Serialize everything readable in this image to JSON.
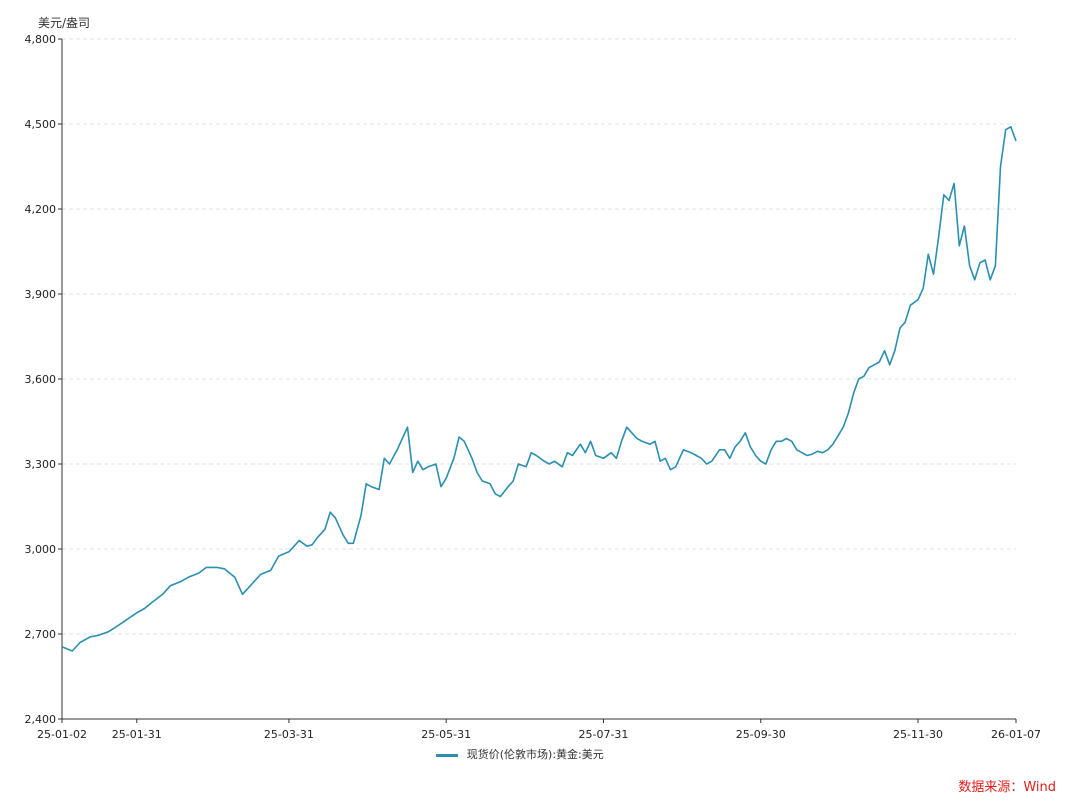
{
  "chart_data": {
    "type": "line",
    "ylabel": "美元/盎司",
    "ylim": [
      2400,
      4800
    ],
    "yticks": [
      "2,400",
      "2,700",
      "3,000",
      "3,300",
      "3,600",
      "3,900",
      "4,200",
      "4,500",
      "4,800"
    ],
    "ytick_values": [
      2400,
      2700,
      3000,
      3300,
      3600,
      3900,
      4200,
      4500,
      4800
    ],
    "xlim": [
      "2025-01-02",
      "2026-01-07"
    ],
    "xticks": [
      {
        "label": "25-01-02",
        "date": "2025-01-02"
      },
      {
        "label": "25-01-31",
        "date": "2025-01-31"
      },
      {
        "label": "25-03-31",
        "date": "2025-03-31"
      },
      {
        "label": "25-05-31",
        "date": "2025-05-31"
      },
      {
        "label": "25-07-31",
        "date": "2025-07-31"
      },
      {
        "label": "25-09-30",
        "date": "2025-09-30"
      },
      {
        "label": "25-11-30",
        "date": "2025-11-30"
      },
      {
        "label": "26-01-07",
        "date": "2026-01-07"
      }
    ],
    "grid": true,
    "legend_position": "bottom-center",
    "source_note": "数据来源：Wind",
    "series": [
      {
        "name": "现货价(伦敦市场):黄金:美元",
        "color": "#2a8fb0",
        "points": [
          [
            "2025-01-02",
            2655
          ],
          [
            "2025-01-06",
            2640
          ],
          [
            "2025-01-09",
            2670
          ],
          [
            "2025-01-13",
            2690
          ],
          [
            "2025-01-16",
            2695
          ],
          [
            "2025-01-20",
            2708
          ],
          [
            "2025-01-23",
            2725
          ],
          [
            "2025-01-27",
            2750
          ],
          [
            "2025-01-31",
            2775
          ],
          [
            "2025-02-03",
            2790
          ],
          [
            "2025-02-06",
            2812
          ],
          [
            "2025-02-10",
            2840
          ],
          [
            "2025-02-13",
            2870
          ],
          [
            "2025-02-17",
            2885
          ],
          [
            "2025-02-20",
            2900
          ],
          [
            "2025-02-24",
            2915
          ],
          [
            "2025-02-27",
            2935
          ],
          [
            "2025-03-03",
            2935
          ],
          [
            "2025-03-06",
            2930
          ],
          [
            "2025-03-10",
            2900
          ],
          [
            "2025-03-13",
            2840
          ],
          [
            "2025-03-17",
            2880
          ],
          [
            "2025-03-20",
            2910
          ],
          [
            "2025-03-24",
            2925
          ],
          [
            "2025-03-27",
            2975
          ],
          [
            "2025-03-31",
            2990
          ],
          [
            "2025-04-02",
            3010
          ],
          [
            "2025-04-04",
            3030
          ],
          [
            "2025-04-07",
            3010
          ],
          [
            "2025-04-09",
            3015
          ],
          [
            "2025-04-11",
            3040
          ],
          [
            "2025-04-14",
            3070
          ],
          [
            "2025-04-16",
            3130
          ],
          [
            "2025-04-18",
            3110
          ],
          [
            "2025-04-21",
            3050
          ],
          [
            "2025-04-23",
            3020
          ],
          [
            "2025-04-25",
            3020
          ],
          [
            "2025-04-28",
            3120
          ],
          [
            "2025-04-30",
            3230
          ],
          [
            "2025-05-02",
            3220
          ],
          [
            "2025-05-05",
            3210
          ],
          [
            "2025-05-07",
            3320
          ],
          [
            "2025-05-09",
            3300
          ],
          [
            "2025-05-12",
            3350
          ],
          [
            "2025-05-14",
            3390
          ],
          [
            "2025-05-16",
            3430
          ],
          [
            "2025-05-18",
            3270
          ],
          [
            "2025-05-20",
            3310
          ],
          [
            "2025-05-22",
            3280
          ],
          [
            "2025-05-24",
            3290
          ],
          [
            "2025-05-27",
            3300
          ],
          [
            "2025-05-29",
            3220
          ],
          [
            "2025-05-31",
            3250
          ],
          [
            "2025-06-03",
            3320
          ],
          [
            "2025-06-05",
            3395
          ],
          [
            "2025-06-07",
            3380
          ],
          [
            "2025-06-10",
            3320
          ],
          [
            "2025-06-12",
            3270
          ],
          [
            "2025-06-14",
            3240
          ],
          [
            "2025-06-17",
            3230
          ],
          [
            "2025-06-19",
            3195
          ],
          [
            "2025-06-21",
            3185
          ],
          [
            "2025-06-24",
            3220
          ],
          [
            "2025-06-26",
            3240
          ],
          [
            "2025-06-28",
            3300
          ],
          [
            "2025-07-01",
            3290
          ],
          [
            "2025-07-03",
            3340
          ],
          [
            "2025-07-05",
            3330
          ],
          [
            "2025-07-08",
            3310
          ],
          [
            "2025-07-10",
            3300
          ],
          [
            "2025-07-12",
            3310
          ],
          [
            "2025-07-15",
            3290
          ],
          [
            "2025-07-17",
            3340
          ],
          [
            "2025-07-19",
            3330
          ],
          [
            "2025-07-22",
            3370
          ],
          [
            "2025-07-24",
            3340
          ],
          [
            "2025-07-26",
            3380
          ],
          [
            "2025-07-28",
            3330
          ],
          [
            "2025-07-31",
            3320
          ],
          [
            "2025-08-03",
            3340
          ],
          [
            "2025-08-05",
            3320
          ],
          [
            "2025-08-07",
            3380
          ],
          [
            "2025-08-09",
            3430
          ],
          [
            "2025-08-11",
            3410
          ],
          [
            "2025-08-13",
            3390
          ],
          [
            "2025-08-15",
            3380
          ],
          [
            "2025-08-18",
            3370
          ],
          [
            "2025-08-20",
            3380
          ],
          [
            "2025-08-22",
            3310
          ],
          [
            "2025-08-24",
            3320
          ],
          [
            "2025-08-26",
            3280
          ],
          [
            "2025-08-28",
            3290
          ],
          [
            "2025-08-31",
            3350
          ],
          [
            "2025-09-03",
            3340
          ],
          [
            "2025-09-05",
            3330
          ],
          [
            "2025-09-07",
            3320
          ],
          [
            "2025-09-09",
            3300
          ],
          [
            "2025-09-11",
            3310
          ],
          [
            "2025-09-14",
            3350
          ],
          [
            "2025-09-16",
            3350
          ],
          [
            "2025-09-18",
            3320
          ],
          [
            "2025-09-20",
            3360
          ],
          [
            "2025-09-22",
            3380
          ],
          [
            "2025-09-24",
            3410
          ],
          [
            "2025-09-26",
            3360
          ],
          [
            "2025-09-28",
            3330
          ],
          [
            "2025-09-30",
            3310
          ],
          [
            "2025-10-02",
            3300
          ],
          [
            "2025-10-04",
            3350
          ],
          [
            "2025-10-06",
            3380
          ],
          [
            "2025-10-08",
            3380
          ],
          [
            "2025-10-10",
            3390
          ],
          [
            "2025-10-12",
            3380
          ],
          [
            "2025-10-14",
            3350
          ],
          [
            "2025-10-16",
            3340
          ],
          [
            "2025-10-18",
            3330
          ],
          [
            "2025-10-20",
            3335
          ],
          [
            "2025-10-22",
            3345
          ],
          [
            "2025-10-24",
            3340
          ],
          [
            "2025-10-26",
            3350
          ],
          [
            "2025-10-28",
            3370
          ],
          [
            "2025-10-30",
            3400
          ],
          [
            "2025-11-01",
            3430
          ],
          [
            "2025-11-03",
            3480
          ],
          [
            "2025-11-05",
            3550
          ],
          [
            "2025-11-07",
            3600
          ],
          [
            "2025-11-09",
            3610
          ],
          [
            "2025-11-11",
            3640
          ],
          [
            "2025-11-13",
            3650
          ],
          [
            "2025-11-15",
            3660
          ],
          [
            "2025-11-17",
            3700
          ],
          [
            "2025-11-19",
            3650
          ],
          [
            "2025-11-21",
            3700
          ],
          [
            "2025-11-23",
            3780
          ],
          [
            "2025-11-25",
            3800
          ],
          [
            "2025-11-27",
            3860
          ],
          [
            "2025-11-30",
            3880
          ],
          [
            "2025-12-02",
            3920
          ],
          [
            "2025-12-04",
            4040
          ],
          [
            "2025-12-06",
            3970
          ],
          [
            "2025-12-08",
            4100
          ],
          [
            "2025-12-10",
            4250
          ],
          [
            "2025-12-12",
            4230
          ],
          [
            "2025-12-14",
            4290
          ],
          [
            "2025-12-16",
            4070
          ],
          [
            "2025-12-18",
            4140
          ],
          [
            "2025-12-20",
            4000
          ],
          [
            "2025-12-22",
            3950
          ],
          [
            "2025-12-24",
            4010
          ],
          [
            "2025-12-26",
            4020
          ],
          [
            "2025-12-28",
            3950
          ],
          [
            "2025-12-30",
            4000
          ],
          [
            "2026-01-01",
            4350
          ],
          [
            "2026-01-03",
            4480
          ],
          [
            "2026-01-05",
            4490
          ],
          [
            "2026-01-07",
            4440
          ]
        ]
      }
    ]
  }
}
